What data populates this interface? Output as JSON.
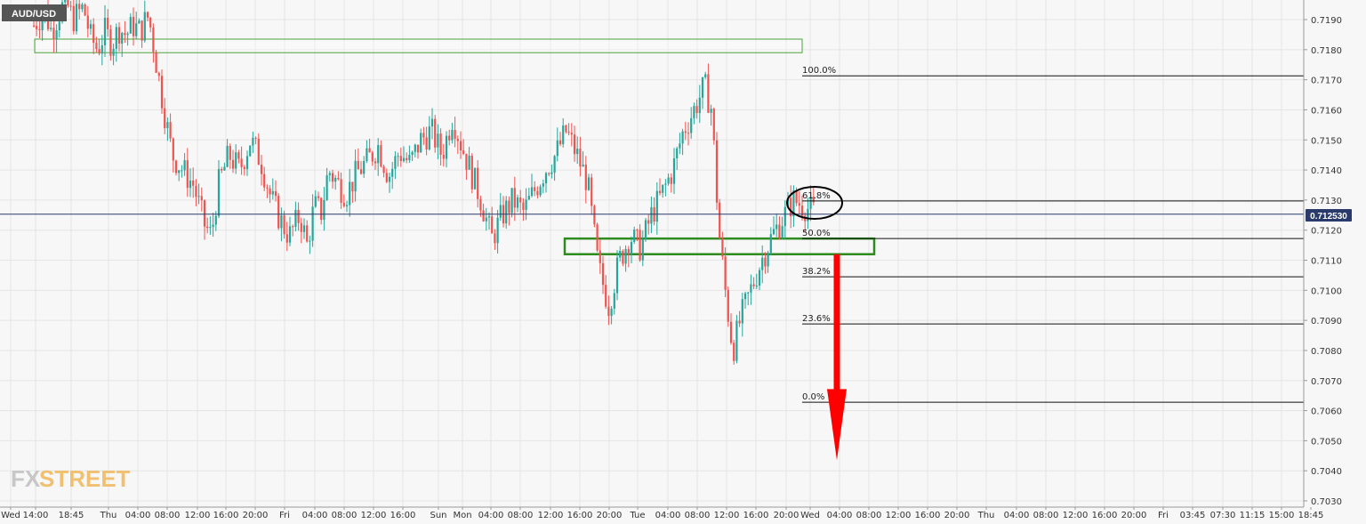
{
  "symbol": "AUD/USD",
  "current_price": "0.712530",
  "watermark": {
    "fx": "FX",
    "street": "STREET"
  },
  "colors": {
    "up": "#26a69a",
    "down": "#ef5350",
    "zone": "#2e8b1e",
    "arrow": "#ff0000",
    "price_line": "#2a3b6b",
    "grid": "#e5e5e5",
    "symbol_bg": "#555555"
  },
  "chart_data": {
    "type": "candlestick",
    "title": "AUD/USD",
    "ylim": [
      0.703,
      0.7197
    ],
    "y_ticks": [
      "0.7190",
      "0.7180",
      "0.7170",
      "0.7160",
      "0.7150",
      "0.7140",
      "0.7130",
      "0.7120",
      "0.7110",
      "0.7100",
      "0.7090",
      "0.7080",
      "0.7070",
      "0.7060",
      "0.7050",
      "0.7040",
      "0.7030"
    ],
    "x_ticks": [
      "Wed",
      "14:00",
      "18:45",
      "Thu",
      "04:00",
      "08:00",
      "12:00",
      "16:00",
      "20:00",
      "Fri",
      "04:00",
      "08:00",
      "12:00",
      "16:00",
      "Sun",
      "Mon",
      "04:00",
      "08:00",
      "12:00",
      "16:00",
      "20:00",
      "Tue",
      "04:00",
      "08:00",
      "12:00",
      "16:00",
      "20:00",
      "Wed",
      "04:00",
      "08:00",
      "12:00",
      "16:00",
      "20:00",
      "Thu",
      "04:00",
      "08:00",
      "12:00",
      "16:00",
      "20:00",
      "Fri",
      "03:45",
      "07:30",
      "11:15",
      "15:00",
      "18:45"
    ],
    "price_path": [
      [
        0,
        0.7188
      ],
      [
        0.03,
        0.7193
      ],
      [
        0.05,
        0.7186
      ],
      [
        0.07,
        0.7192
      ],
      [
        0.09,
        0.7196
      ],
      [
        0.11,
        0.719
      ],
      [
        0.14,
        0.7194
      ],
      [
        0.16,
        0.7184
      ],
      [
        0.18,
        0.718
      ],
      [
        0.2,
        0.7186
      ],
      [
        0.22,
        0.7182
      ],
      [
        0.24,
        0.7187
      ],
      [
        0.26,
        0.7185
      ],
      [
        0.28,
        0.7188
      ],
      [
        0.3,
        0.7186
      ],
      [
        0.32,
        0.7191
      ],
      [
        0.33,
        0.7187
      ],
      [
        0.35,
        0.7172
      ],
      [
        0.37,
        0.7158
      ],
      [
        0.39,
        0.7145
      ],
      [
        0.42,
        0.714
      ],
      [
        0.45,
        0.7135
      ],
      [
        0.48,
        0.7122
      ],
      [
        0.5,
        0.7118
      ],
      [
        0.52,
        0.7135
      ],
      [
        0.55,
        0.7145
      ],
      [
        0.58,
        0.714
      ],
      [
        0.61,
        0.715
      ],
      [
        0.64,
        0.7143
      ],
      [
        0.67,
        0.713
      ],
      [
        0.7,
        0.7122
      ],
      [
        0.72,
        0.7118
      ],
      [
        0.75,
        0.7125
      ],
      [
        0.77,
        0.7115
      ],
      [
        0.79,
        0.7128
      ],
      [
        0.81,
        0.7126
      ],
      [
        0.83,
        0.714
      ],
      [
        0.86,
        0.7135
      ],
      [
        0.88,
        0.7132
      ],
      [
        0.91,
        0.7139
      ],
      [
        0.94,
        0.7143
      ],
      [
        0.97,
        0.7148
      ],
      [
        1.0,
        0.7138
      ],
      [
        1.03,
        0.7146
      ],
      [
        1.06,
        0.7142
      ],
      [
        1.09,
        0.715
      ],
      [
        1.12,
        0.7153
      ],
      [
        1.15,
        0.7145
      ],
      [
        1.18,
        0.7158
      ],
      [
        1.2,
        0.715
      ],
      [
        1.23,
        0.714
      ],
      [
        1.26,
        0.713
      ],
      [
        1.29,
        0.7117
      ],
      [
        1.32,
        0.7125
      ],
      [
        1.35,
        0.713
      ],
      [
        1.38,
        0.7126
      ],
      [
        1.41,
        0.7133
      ],
      [
        1.44,
        0.714
      ],
      [
        1.47,
        0.7145
      ],
      [
        1.5,
        0.7153
      ],
      [
        1.53,
        0.7145
      ],
      [
        1.56,
        0.7136
      ],
      [
        1.59,
        0.7108
      ],
      [
        1.62,
        0.7095
      ],
      [
        1.65,
        0.711
      ],
      [
        1.68,
        0.7118
      ],
      [
        1.71,
        0.7114
      ],
      [
        1.74,
        0.7125
      ],
      [
        1.77,
        0.7132
      ],
      [
        1.8,
        0.714
      ],
      [
        1.83,
        0.7153
      ],
      [
        1.86,
        0.716
      ],
      [
        1.89,
        0.7168
      ],
      [
        1.91,
        0.716
      ],
      [
        1.93,
        0.712
      ],
      [
        1.95,
        0.7098
      ],
      [
        1.97,
        0.708
      ],
      [
        1.99,
        0.709
      ],
      [
        2.02,
        0.71
      ],
      [
        2.05,
        0.711
      ],
      [
        2.08,
        0.7118
      ],
      [
        2.11,
        0.7124
      ],
      [
        2.14,
        0.713
      ],
      [
        2.17,
        0.7128
      ],
      [
        2.2,
        0.7126
      ]
    ],
    "fibonacci": {
      "levels": [
        {
          "label": "100.0%",
          "price": 0.71713
        },
        {
          "label": "61.8%",
          "price": 0.71297
        },
        {
          "label": "50.0%",
          "price": 0.71172
        },
        {
          "label": "38.2%",
          "price": 0.71045
        },
        {
          "label": "23.6%",
          "price": 0.70888
        },
        {
          "label": "0.0%",
          "price": 0.70628
        }
      ]
    },
    "zones": [
      {
        "name": "upper-resistance-zone",
        "price_top": 0.71835,
        "price_bottom": 0.7179
      },
      {
        "name": "support-zone",
        "price_top": 0.71172,
        "price_bottom": 0.7112
      }
    ],
    "projection": {
      "from_price": 0.7112,
      "to_price": 0.70435
    }
  }
}
